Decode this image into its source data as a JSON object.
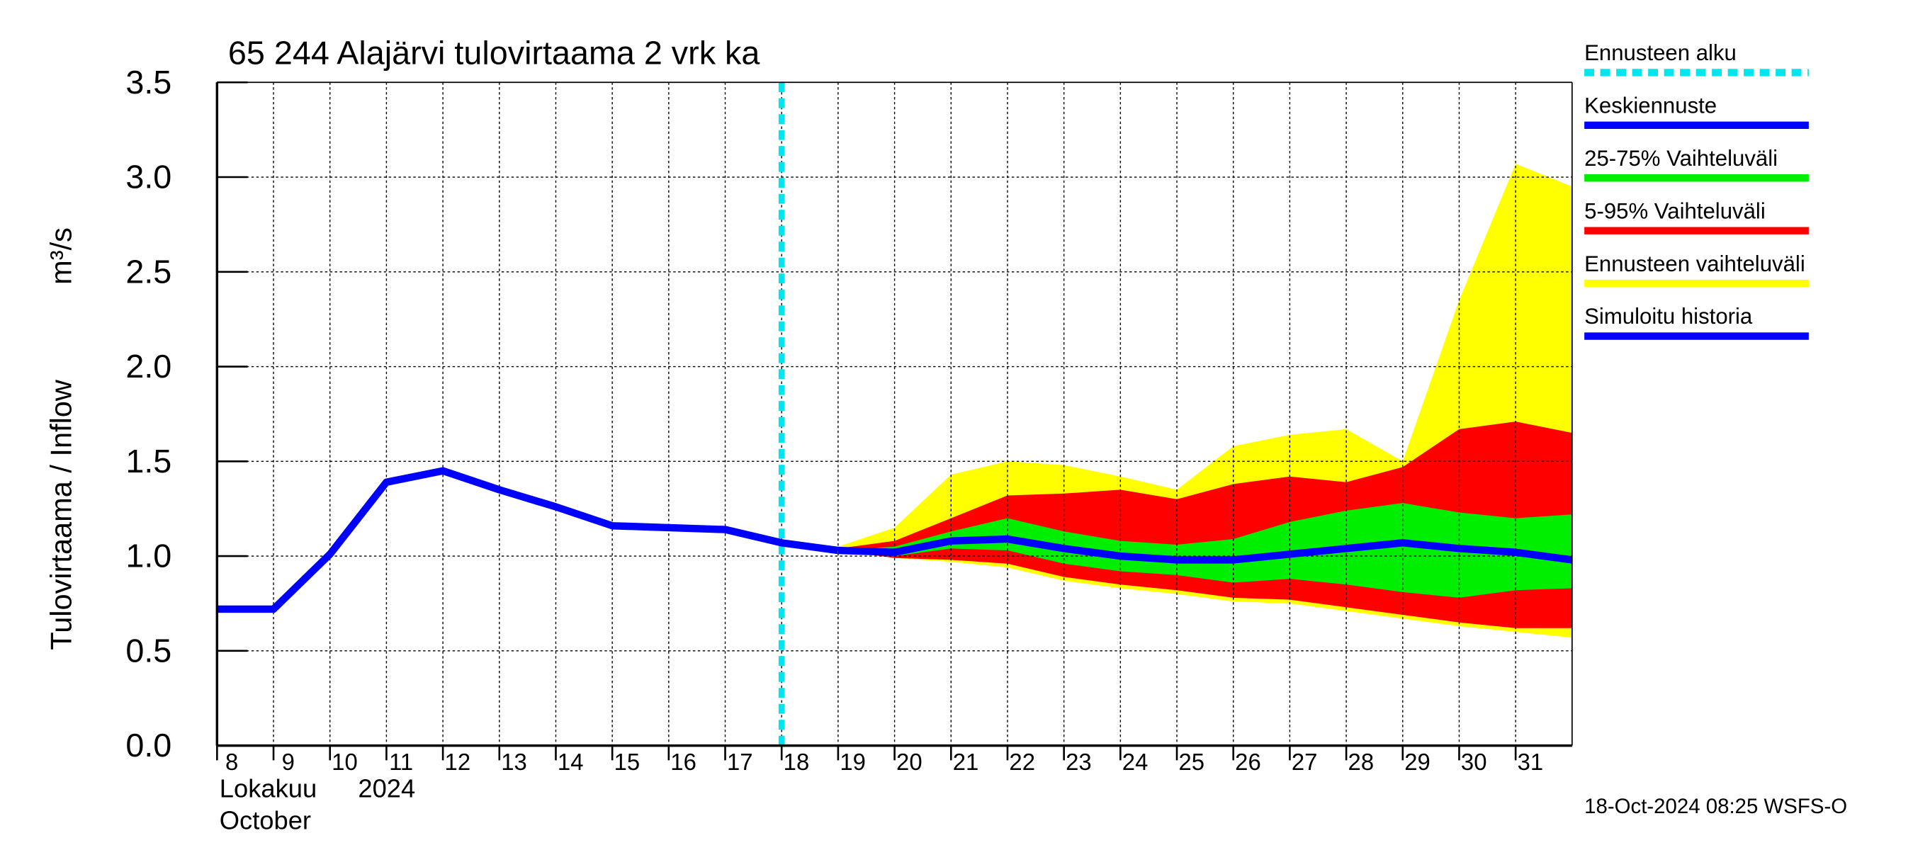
{
  "chart_data": {
    "type": "forecast-band",
    "title": "65 244 Alajärvi tulovirtaama 2 vrk ka",
    "ylabel": "Tulovirtaama / Inflow",
    "yunit": "m³/s",
    "xlabel_month": "Lokakuu",
    "xlabel_year": "2024",
    "xlabel_month_en": "October",
    "footer": "18-Oct-2024 08:25 WSFS-O",
    "xlim": [
      8,
      32
    ],
    "xticks": [
      8,
      9,
      10,
      11,
      12,
      13,
      14,
      15,
      16,
      17,
      18,
      19,
      20,
      21,
      22,
      23,
      24,
      25,
      26,
      27,
      28,
      29,
      30,
      31
    ],
    "ylim": [
      0,
      3.5
    ],
    "yticks": [
      {
        "value": 0,
        "label": "0.0"
      },
      {
        "value": 0.5,
        "label": "0.5"
      },
      {
        "value": 1,
        "label": "1.0"
      },
      {
        "value": 1.5,
        "label": "1.5"
      },
      {
        "value": 2,
        "label": "2.0"
      },
      {
        "value": 2.5,
        "label": "2.5"
      },
      {
        "value": 3,
        "label": "3.0"
      },
      {
        "value": 3.5,
        "label": "3.5"
      }
    ],
    "grid": true,
    "forecast_start": {
      "name": "Ennusteen alku",
      "color": "#00e5ee",
      "x": 18
    },
    "bands": [
      {
        "name": "Ennusteen vaihteluväli",
        "color": "#ffff00",
        "x": [
          19,
          20,
          21,
          22,
          23,
          24,
          25,
          26,
          27,
          28,
          29,
          30,
          31,
          32
        ],
        "low": [
          1.03,
          0.99,
          0.97,
          0.94,
          0.87,
          0.83,
          0.8,
          0.76,
          0.75,
          0.71,
          0.67,
          0.63,
          0.6,
          0.57
        ],
        "high": [
          1.05,
          1.15,
          1.43,
          1.5,
          1.48,
          1.42,
          1.35,
          1.58,
          1.64,
          1.67,
          1.5,
          2.35,
          3.07,
          2.95
        ]
      },
      {
        "name": "5-95% Vaihteluväli",
        "color": "#ff0000",
        "x": [
          19,
          20,
          21,
          22,
          23,
          24,
          25,
          26,
          27,
          28,
          29,
          30,
          31,
          32
        ],
        "low": [
          1.03,
          0.99,
          0.98,
          0.96,
          0.89,
          0.85,
          0.82,
          0.78,
          0.77,
          0.73,
          0.69,
          0.65,
          0.62,
          0.62
        ],
        "high": [
          1.04,
          1.08,
          1.2,
          1.32,
          1.33,
          1.35,
          1.3,
          1.38,
          1.42,
          1.39,
          1.47,
          1.67,
          1.71,
          1.65
        ]
      },
      {
        "name": "25-75% Vaihteluväli",
        "color": "#00ee00",
        "x": [
          19,
          20,
          21,
          22,
          23,
          24,
          25,
          26,
          27,
          28,
          29,
          30,
          31,
          32
        ],
        "low": [
          1.03,
          1.0,
          1.04,
          1.03,
          0.96,
          0.92,
          0.9,
          0.86,
          0.88,
          0.85,
          0.81,
          0.78,
          0.82,
          0.83
        ],
        "high": [
          1.03,
          1.05,
          1.13,
          1.2,
          1.13,
          1.08,
          1.06,
          1.09,
          1.18,
          1.24,
          1.28,
          1.23,
          1.2,
          1.22
        ]
      }
    ],
    "series": [
      {
        "name": "Keskiennuste",
        "color": "#0000ff",
        "x": [
          19,
          20,
          21,
          22,
          23,
          24,
          25,
          26,
          27,
          28,
          29,
          30,
          31,
          32
        ],
        "values": [
          1.03,
          1.02,
          1.08,
          1.09,
          1.04,
          1.0,
          0.98,
          0.98,
          1.01,
          1.04,
          1.07,
          1.04,
          1.02,
          0.98
        ]
      },
      {
        "name": "Simuloitu historia",
        "color": "#0000ff",
        "x": [
          8,
          9,
          10,
          11,
          12,
          13,
          14,
          15,
          16,
          17,
          18,
          19
        ],
        "values": [
          0.72,
          0.72,
          1.01,
          1.39,
          1.45,
          1.35,
          1.26,
          1.16,
          1.15,
          1.14,
          1.07,
          1.03
        ]
      }
    ]
  }
}
